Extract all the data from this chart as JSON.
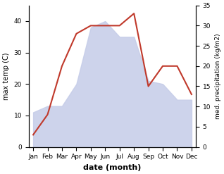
{
  "months": [
    "Jan",
    "Feb",
    "Mar",
    "Apr",
    "May",
    "Jun",
    "Jul",
    "Aug",
    "Sep",
    "Oct",
    "Nov",
    "Dec"
  ],
  "max_temp": [
    11,
    13,
    13,
    20,
    38,
    40,
    35,
    35,
    21,
    20,
    15,
    15
  ],
  "precipitation": [
    3,
    8,
    20,
    28,
    30,
    30,
    30,
    33,
    15,
    20,
    20,
    13
  ],
  "temp_fill_color": "#c5cce8",
  "temp_fill_alpha": 0.85,
  "precip_color": "#c0392b",
  "xlabel": "date (month)",
  "ylabel_left": "max temp (C)",
  "ylabel_right": "med. precipitation (kg/m2)",
  "ylim_left": [
    0,
    45
  ],
  "ylim_right": [
    0,
    35
  ],
  "yticks_left": [
    0,
    10,
    20,
    30,
    40
  ],
  "yticks_right": [
    0,
    5,
    10,
    15,
    20,
    25,
    30,
    35
  ],
  "background_color": "#ffffff",
  "figsize": [
    3.18,
    2.47
  ],
  "dpi": 100,
  "ylabel_left_fontsize": 7,
  "ylabel_right_fontsize": 6.5,
  "xlabel_fontsize": 8,
  "xlabel_fontweight": "bold",
  "tick_fontsize": 6.5,
  "precip_linewidth": 1.5
}
